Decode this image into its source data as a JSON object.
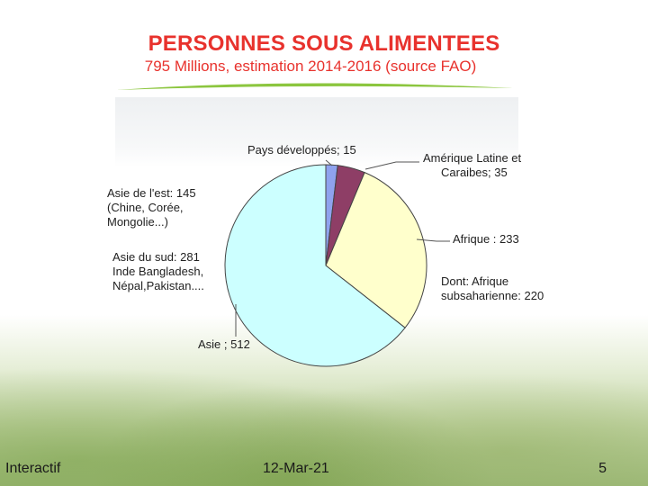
{
  "title": "PERSONNES SOUS ALIMENTEES",
  "subtitle": "795 Millions, estimation 2014-2016 (source FAO)",
  "footer": {
    "left": "Interactif",
    "center": "12-Mar-21",
    "page": "5"
  },
  "colors": {
    "title": "#e8322d",
    "swoosh": "#8cc63f"
  },
  "chart_data": {
    "type": "pie",
    "title": "",
    "slices": [
      {
        "label": "Pays développés; 15",
        "value": 15,
        "color": "#8fa2ee"
      },
      {
        "label": "Amérique Latine et Caraibes; 35",
        "value": 35,
        "color": "#8e3e66"
      },
      {
        "label": "Afrique : 233",
        "value": 233,
        "color": "#ffffcc"
      },
      {
        "label": "Asie ; 512",
        "value": 512,
        "color": "#ccffff"
      }
    ],
    "annotations": [
      {
        "text": "Asie de l'est: 145 (Chine, Corée, Mongolie...)"
      },
      {
        "text": "Asie du sud: 281 Inde Bangladesh, Népal,Pakistan...."
      },
      {
        "text": "Dont: Afrique subsaharienne: 220"
      }
    ]
  }
}
